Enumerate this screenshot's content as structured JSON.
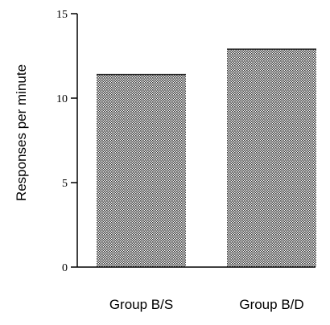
{
  "chart_data": {
    "type": "bar",
    "title": "",
    "xlabel": "",
    "ylabel": "Responses per minute",
    "categories": [
      "Group B/S",
      "Group B/D"
    ],
    "values": [
      11.4,
      12.9
    ],
    "ylim": [
      0,
      15
    ],
    "yticks": [
      0,
      5,
      10,
      15
    ],
    "grid": false,
    "bar_fill": "stippled gray"
  }
}
